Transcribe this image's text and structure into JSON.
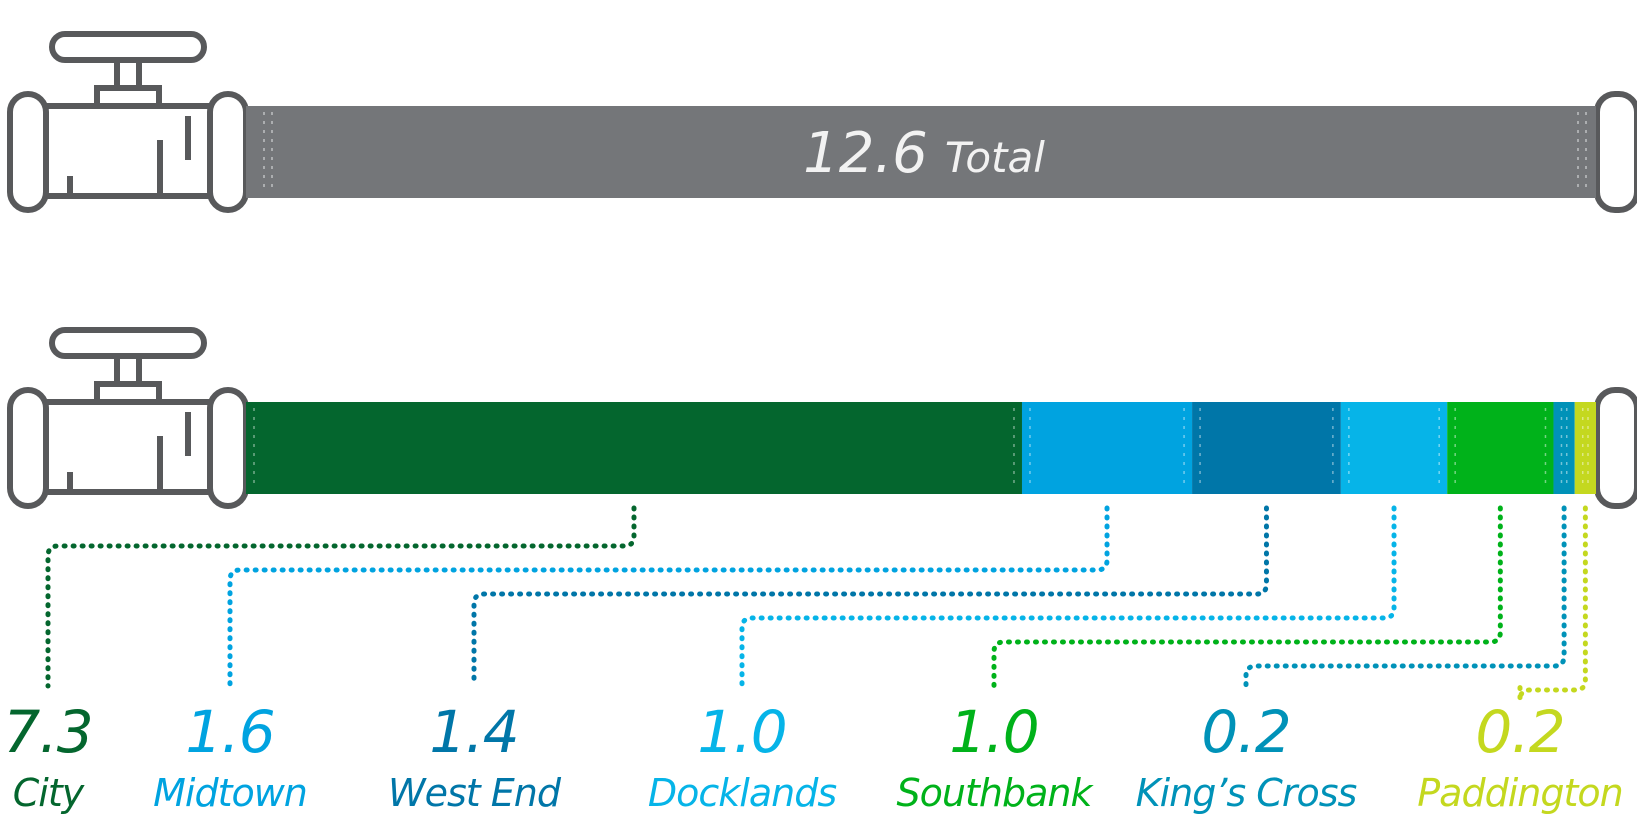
{
  "chart_data": {
    "type": "bar",
    "orientation": "horizontal",
    "stacked": true,
    "total": {
      "value": "12.6",
      "label": "Total"
    },
    "categories": [
      "City",
      "Midtown",
      "West End",
      "Docklands",
      "Southbank",
      "King’s Cross",
      "Paddington"
    ],
    "values": [
      7.3,
      1.6,
      1.4,
      1.0,
      1.0,
      0.2,
      0.2
    ],
    "value_labels": [
      "7.3",
      "1.6",
      "1.4",
      "1.0",
      "1.0",
      "0.2",
      "0.2"
    ],
    "colors": [
      "#04662e",
      "#00a3e0",
      "#0076a8",
      "#06b4e8",
      "#00b21a",
      "#0092b8",
      "#c4d81f"
    ],
    "total_color": "#747679",
    "pipe_color": "#58595b"
  }
}
